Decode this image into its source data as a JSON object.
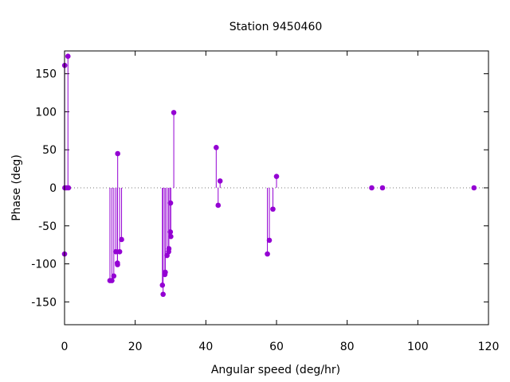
{
  "chart_data": {
    "type": "scatter",
    "style": "impulses-with-points",
    "title": "Station 9450460",
    "xlabel": "Angular speed (deg/hr)",
    "ylabel": "Phase (deg)",
    "xlim": [
      0,
      120
    ],
    "ylim": [
      -180,
      180
    ],
    "xticks": [
      0,
      20,
      40,
      60,
      80,
      100,
      120
    ],
    "yticks": [
      -150,
      -100,
      -50,
      0,
      50,
      100,
      150
    ],
    "color": "#9400d3",
    "zero_line": true,
    "grid": false,
    "points": [
      {
        "x": 0.0,
        "y": -87
      },
      {
        "x": 0.04,
        "y": 161
      },
      {
        "x": 0.08,
        "y": 0
      },
      {
        "x": 0.55,
        "y": 0
      },
      {
        "x": 0.96,
        "y": 173
      },
      {
        "x": 1.1,
        "y": 0
      },
      {
        "x": 12.85,
        "y": -122
      },
      {
        "x": 13.4,
        "y": -122
      },
      {
        "x": 13.94,
        "y": -116
      },
      {
        "x": 14.5,
        "y": -84
      },
      {
        "x": 14.96,
        "y": -99
      },
      {
        "x": 15.0,
        "y": -101
      },
      {
        "x": 15.04,
        "y": 45
      },
      {
        "x": 15.59,
        "y": -84
      },
      {
        "x": 16.14,
        "y": -68
      },
      {
        "x": 27.7,
        "y": -128
      },
      {
        "x": 27.9,
        "y": -140
      },
      {
        "x": 28.4,
        "y": -114
      },
      {
        "x": 28.51,
        "y": -111
      },
      {
        "x": 29.0,
        "y": -89
      },
      {
        "x": 29.46,
        "y": -84
      },
      {
        "x": 29.53,
        "y": -80
      },
      {
        "x": 29.96,
        "y": -58
      },
      {
        "x": 30.0,
        "y": -20
      },
      {
        "x": 30.08,
        "y": -64
      },
      {
        "x": 30.92,
        "y": 99
      },
      {
        "x": 42.93,
        "y": 53
      },
      {
        "x": 43.48,
        "y": -23
      },
      {
        "x": 44.03,
        "y": 9
      },
      {
        "x": 57.42,
        "y": -87
      },
      {
        "x": 57.97,
        "y": -69
      },
      {
        "x": 58.98,
        "y": -28
      },
      {
        "x": 60.0,
        "y": 15
      },
      {
        "x": 86.95,
        "y": 0
      },
      {
        "x": 90.0,
        "y": 0
      },
      {
        "x": 115.9,
        "y": 0
      }
    ]
  }
}
